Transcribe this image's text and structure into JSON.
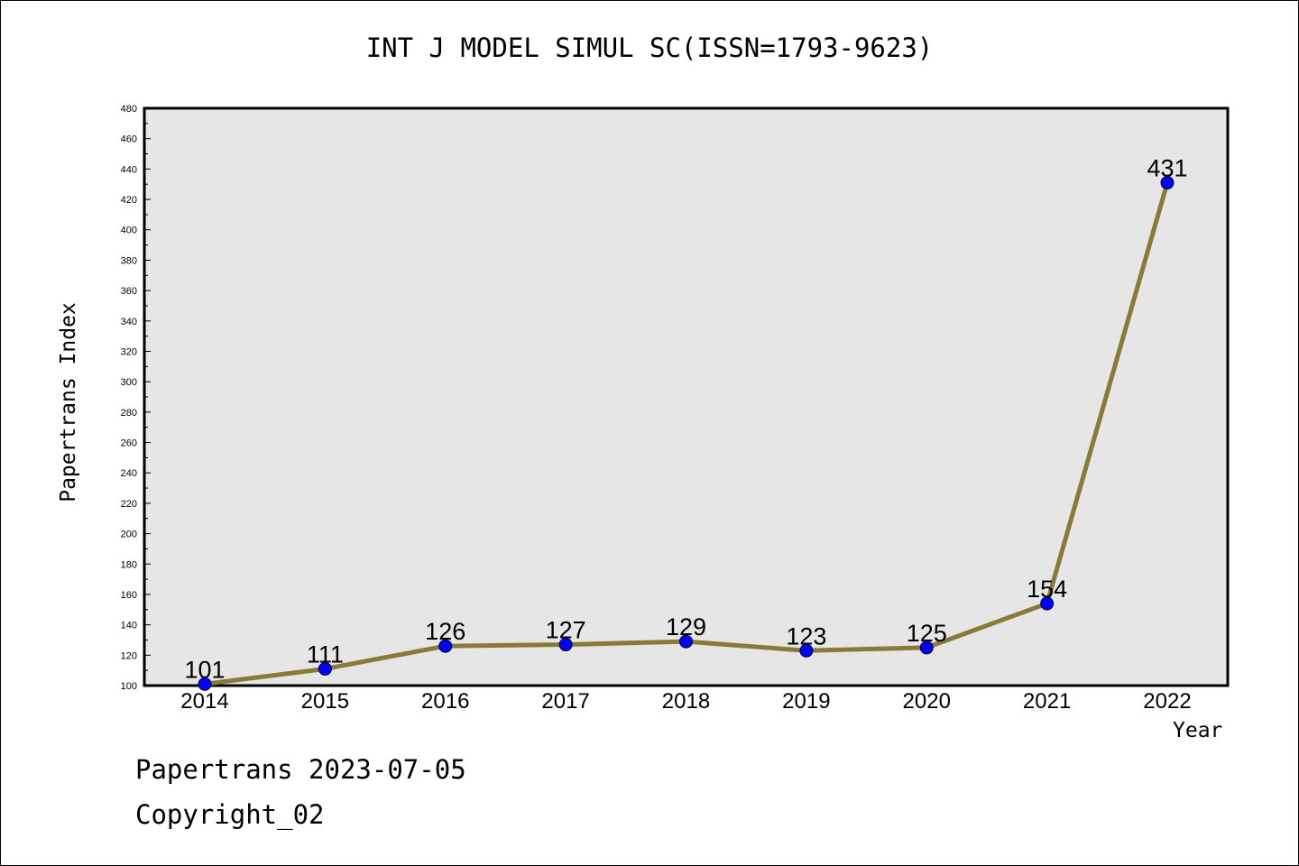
{
  "chart_data": {
    "type": "line",
    "title": "INT J MODEL SIMUL SC(ISSN=1793-9623)",
    "xlabel": "Year",
    "ylabel": "Papertrans Index",
    "x": [
      "2014",
      "2015",
      "2016",
      "2017",
      "2018",
      "2019",
      "2020",
      "2021",
      "2022"
    ],
    "series": [
      {
        "values": [
          101,
          111,
          126,
          127,
          129,
          123,
          125,
          154,
          431
        ]
      }
    ],
    "ylim": [
      100,
      480
    ],
    "ytick_step": 20,
    "grid": false,
    "colors": {
      "line": "#8B7A35",
      "marker": "#0000FF",
      "plot_bg": "#E6E6E6"
    }
  },
  "footer": {
    "line1": "Papertrans 2023-07-05",
    "line2": "Copyright_02"
  }
}
